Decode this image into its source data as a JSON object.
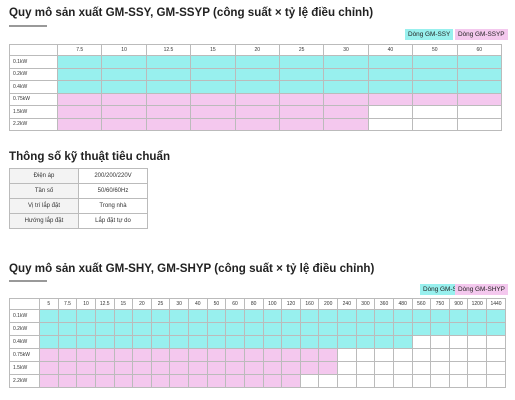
{
  "section1": {
    "title": "Quy mô sản xuất GM-SSY, GM-SSYP (công suất × tỷ lệ điều chỉnh)",
    "legend": {
      "cyan": "Dòng GM-SSY",
      "pink": "Dòng GM-SSYP"
    },
    "columns": [
      "7.5",
      "10",
      "12.5",
      "15",
      "20",
      "25",
      "30",
      "40",
      "50",
      "60"
    ],
    "rows": [
      {
        "label": "0.1kW",
        "cells": "cccccccccc"
      },
      {
        "label": "0.2kW",
        "cells": "cccccccccc"
      },
      {
        "label": "0.4kW",
        "cells": "cccccccccc"
      },
      {
        "label": "0.75kW",
        "cells": "pppppppppp"
      },
      {
        "label": "1.5kW",
        "cells": "pppppppwww"
      },
      {
        "label": "2.2kW",
        "cells": "pppppppwww"
      }
    ]
  },
  "specs": {
    "title": "Thông số kỹ thuật tiêu chuẩn",
    "rows": [
      {
        "key": "Điện áp",
        "value": "200/200/220V"
      },
      {
        "key": "Tần số",
        "value": "50/60/60Hz"
      },
      {
        "key": "Vị trí lắp đặt",
        "value": "Trong nhà"
      },
      {
        "key": "Hướng lắp đặt",
        "value": "Lắp đặt tự do"
      }
    ]
  },
  "section2": {
    "title": "Quy mô sản xuất GM-SHY, GM-SHYP (công suất × tỷ lệ điều chỉnh)",
    "legend": {
      "cyan": "Dòng GM-SHY",
      "pink": "Dòng GM-SHYP"
    },
    "columns": [
      "5",
      "7.5",
      "10",
      "12.5",
      "15",
      "20",
      "25",
      "30",
      "40",
      "50",
      "60",
      "80",
      "100",
      "120",
      "160",
      "200",
      "240",
      "300",
      "360",
      "480",
      "560",
      "750",
      "900",
      "1200",
      "1440"
    ],
    "rows": [
      {
        "label": "0.1kW",
        "cells": "ccccccccccccccccccccccccc"
      },
      {
        "label": "0.2kW",
        "cells": "ccccccccccccccccccccccccc"
      },
      {
        "label": "0.4kW",
        "cells": "ccccccccccccccccccccwwwww"
      },
      {
        "label": "0.75kW",
        "cells": "ppppppppppppppppwwwwwwwww"
      },
      {
        "label": "1.5kW",
        "cells": "ppppppppppppppppwwwwwwwww"
      },
      {
        "label": "2.2kW",
        "cells": "ppppppppppppppwwwwwwwwwww"
      }
    ]
  },
  "colors": {
    "cyan": "#98f0ee",
    "pink": "#f4c8ee"
  }
}
